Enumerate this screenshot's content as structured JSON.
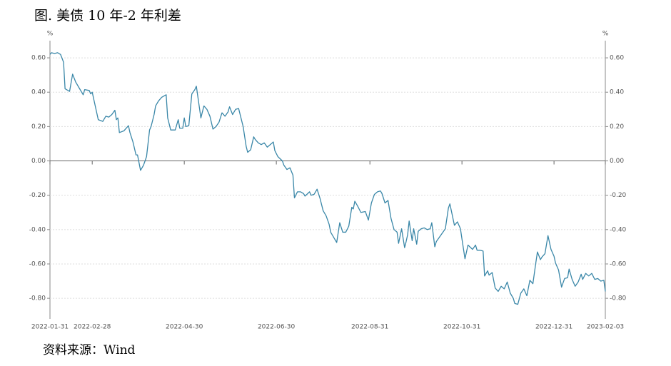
{
  "chart_data": {
    "type": "line",
    "title": "图. 美债 10 年-2 年利差",
    "source": "资料来源：Wind",
    "ylabel": "%",
    "y2label": "%",
    "color": "#3a87a8",
    "grid": true,
    "xlim": [
      "2022-01-31",
      "2023-02-03"
    ],
    "xticks": [
      "2022-01-31",
      "2022-02-28",
      "2022-04-30",
      "2022-06-30",
      "2022-08-31",
      "2022-10-31",
      "2022-12-31",
      "2023-02-03"
    ],
    "ylim": [
      -0.92,
      0.7
    ],
    "yticks": [
      {
        "value": -0.8,
        "label": "-0.80"
      },
      {
        "value": -0.6,
        "label": "-0.60"
      },
      {
        "value": -0.4,
        "label": "-0.40"
      },
      {
        "value": -0.2,
        "label": "-0.20"
      },
      {
        "value": 0,
        "label": "0.00"
      },
      {
        "value": 0.2,
        "label": "0.20"
      },
      {
        "value": 0.4,
        "label": "0.40"
      },
      {
        "value": 0.6,
        "label": "0.60"
      }
    ],
    "y2lim": [
      -0.92,
      0.7
    ],
    "y2ticks": [
      {
        "value": -0.8,
        "label": "-0.80"
      },
      {
        "value": -0.6,
        "label": "-0.60"
      },
      {
        "value": -0.4,
        "label": "-0.40"
      },
      {
        "value": -0.2,
        "label": "-0.20"
      },
      {
        "value": 0,
        "label": "0.00"
      },
      {
        "value": 0.2,
        "label": "0.20"
      },
      {
        "value": 0.4,
        "label": "0.40"
      },
      {
        "value": 0.6,
        "label": "0.60"
      }
    ],
    "x": [
      "2022-01-31",
      "2022-02-01",
      "2022-02-03",
      "2022-02-05",
      "2022-02-07",
      "2022-02-09",
      "2022-02-10",
      "2022-02-13",
      "2022-02-15",
      "2022-02-17",
      "2022-02-20",
      "2022-02-22",
      "2022-02-23",
      "2022-02-26",
      "2022-02-27",
      "2022-02-28",
      "2022-03-02",
      "2022-03-04",
      "2022-03-07",
      "2022-03-09",
      "2022-03-11",
      "2022-03-13",
      "2022-03-15",
      "2022-03-16",
      "2022-03-17",
      "2022-03-18",
      "2022-03-21",
      "2022-03-22",
      "2022-03-24",
      "2022-03-25",
      "2022-03-27",
      "2022-03-29",
      "2022-03-30",
      "2022-04-01",
      "2022-04-03",
      "2022-04-05",
      "2022-04-07",
      "2022-04-08",
      "2022-04-10",
      "2022-04-11",
      "2022-04-13",
      "2022-04-15",
      "2022-04-16",
      "2022-04-18",
      "2022-04-19",
      "2022-04-21",
      "2022-04-24",
      "2022-04-26",
      "2022-04-27",
      "2022-04-29",
      "2022-04-30",
      "2022-05-01",
      "2022-05-03",
      "2022-05-05",
      "2022-05-07",
      "2022-05-08",
      "2022-05-11",
      "2022-05-13",
      "2022-05-15",
      "2022-05-17",
      "2022-05-19",
      "2022-05-21",
      "2022-05-23",
      "2022-05-25",
      "2022-05-27",
      "2022-05-29",
      "2022-05-30",
      "2022-06-01",
      "2022-06-03",
      "2022-06-05",
      "2022-06-08",
      "2022-06-10",
      "2022-06-11",
      "2022-06-13",
      "2022-06-15",
      "2022-06-16",
      "2022-06-18",
      "2022-06-20",
      "2022-06-22",
      "2022-06-24",
      "2022-06-26",
      "2022-06-28",
      "2022-06-29",
      "2022-07-01",
      "2022-07-04",
      "2022-07-05",
      "2022-07-07",
      "2022-07-09",
      "2022-07-11",
      "2022-07-12",
      "2022-07-14",
      "2022-07-16",
      "2022-07-18",
      "2022-07-19",
      "2022-07-22",
      "2022-07-23",
      "2022-07-25",
      "2022-07-27",
      "2022-07-29",
      "2022-07-31",
      "2022-08-02",
      "2022-08-04",
      "2022-08-05",
      "2022-08-07",
      "2022-08-09",
      "2022-08-11",
      "2022-08-13",
      "2022-08-15",
      "2022-08-17",
      "2022-08-19",
      "2022-08-20",
      "2022-08-21",
      "2022-08-23",
      "2022-08-25",
      "2022-08-28",
      "2022-08-30",
      "2022-09-01",
      "2022-09-03",
      "2022-09-05",
      "2022-09-07",
      "2022-09-08",
      "2022-09-10",
      "2022-09-12",
      "2022-09-14",
      "2022-09-16",
      "2022-09-18",
      "2022-09-19",
      "2022-09-21",
      "2022-09-23",
      "2022-09-24",
      "2022-09-25",
      "2022-09-26",
      "2022-09-28",
      "2022-09-29",
      "2022-10-01",
      "2022-10-02",
      "2022-10-04",
      "2022-10-06",
      "2022-10-08",
      "2022-10-10",
      "2022-10-11",
      "2022-10-13",
      "2022-10-14",
      "2022-10-16",
      "2022-10-18",
      "2022-10-20",
      "2022-10-22",
      "2022-10-23",
      "2022-10-26",
      "2022-10-28",
      "2022-10-30",
      "2022-10-31",
      "2022-11-02",
      "2022-11-04",
      "2022-11-07",
      "2022-11-09",
      "2022-11-10",
      "2022-11-12",
      "2022-11-14",
      "2022-11-15",
      "2022-11-17",
      "2022-11-18",
      "2022-11-20",
      "2022-11-22",
      "2022-11-24",
      "2022-11-26",
      "2022-11-28",
      "2022-11-30",
      "2022-12-02",
      "2022-12-04",
      "2022-12-05",
      "2022-12-07",
      "2022-12-09",
      "2022-12-11",
      "2022-12-13",
      "2022-12-15",
      "2022-12-17",
      "2022-12-19",
      "2022-12-20",
      "2022-12-22",
      "2022-12-23",
      "2022-12-25",
      "2022-12-27",
      "2022-12-29",
      "2022-12-31",
      "2023-01-01",
      "2023-01-03",
      "2023-01-05",
      "2023-01-07",
      "2023-01-09",
      "2023-01-10",
      "2023-01-12",
      "2023-01-14",
      "2023-01-16",
      "2023-01-18",
      "2023-01-19",
      "2023-01-21",
      "2023-01-23",
      "2023-01-25",
      "2023-01-27",
      "2023-01-29",
      "2023-01-31",
      "2023-02-02",
      "2023-02-03"
    ],
    "values": [
      0.62,
      0.63,
      0.625,
      0.63,
      0.62,
      0.575,
      0.42,
      0.405,
      0.505,
      0.46,
      0.415,
      0.385,
      0.415,
      0.41,
      0.39,
      0.4,
      0.32,
      0.24,
      0.23,
      0.26,
      0.255,
      0.27,
      0.295,
      0.24,
      0.25,
      0.165,
      0.175,
      0.185,
      0.205,
      0.165,
      0.11,
      0.035,
      0.035,
      -0.055,
      -0.025,
      0.025,
      0.18,
      0.2,
      0.27,
      0.32,
      0.35,
      0.37,
      0.375,
      0.385,
      0.25,
      0.18,
      0.18,
      0.24,
      0.19,
      0.19,
      0.25,
      0.2,
      0.205,
      0.39,
      0.415,
      0.435,
      0.25,
      0.32,
      0.3,
      0.26,
      0.185,
      0.2,
      0.225,
      0.28,
      0.26,
      0.285,
      0.315,
      0.27,
      0.3,
      0.305,
      0.2,
      0.085,
      0.05,
      0.065,
      0.14,
      0.125,
      0.105,
      0.095,
      0.105,
      0.08,
      0.095,
      0.11,
      0.06,
      0.025,
      0,
      -0.025,
      -0.05,
      -0.04,
      -0.083,
      -0.215,
      -0.18,
      -0.18,
      -0.19,
      -0.205,
      -0.18,
      -0.2,
      -0.195,
      -0.165,
      -0.22,
      -0.29,
      -0.32,
      -0.37,
      -0.415,
      -0.445,
      -0.475,
      -0.36,
      -0.415,
      -0.415,
      -0.38,
      -0.27,
      -0.28,
      -0.235,
      -0.265,
      -0.3,
      -0.295,
      -0.345,
      -0.245,
      -0.195,
      -0.18,
      -0.175,
      -0.19,
      -0.245,
      -0.23,
      -0.335,
      -0.4,
      -0.415,
      -0.48,
      -0.395,
      -0.505,
      -0.47,
      -0.43,
      -0.35,
      -0.465,
      -0.395,
      -0.485,
      -0.41,
      -0.395,
      -0.39,
      -0.4,
      -0.395,
      -0.36,
      -0.5,
      -0.47,
      -0.445,
      -0.42,
      -0.395,
      -0.275,
      -0.25,
      -0.375,
      -0.355,
      -0.395,
      -0.455,
      -0.57,
      -0.49,
      -0.515,
      -0.49,
      -0.52,
      -0.52,
      -0.525,
      -0.67,
      -0.64,
      -0.665,
      -0.65,
      -0.74,
      -0.76,
      -0.73,
      -0.745,
      -0.705,
      -0.77,
      -0.8,
      -0.83,
      -0.835,
      -0.77,
      -0.745,
      -0.785,
      -0.695,
      -0.715,
      -0.59,
      -0.53,
      -0.575,
      -0.56,
      -0.54,
      -0.435,
      -0.515,
      -0.555,
      -0.595,
      -0.635,
      -0.735,
      -0.685,
      -0.68,
      -0.63,
      -0.69,
      -0.73,
      -0.705,
      -0.66,
      -0.69,
      -0.655,
      -0.67,
      -0.655,
      -0.69,
      -0.685,
      -0.7,
      -0.695,
      -0.76
    ]
  }
}
